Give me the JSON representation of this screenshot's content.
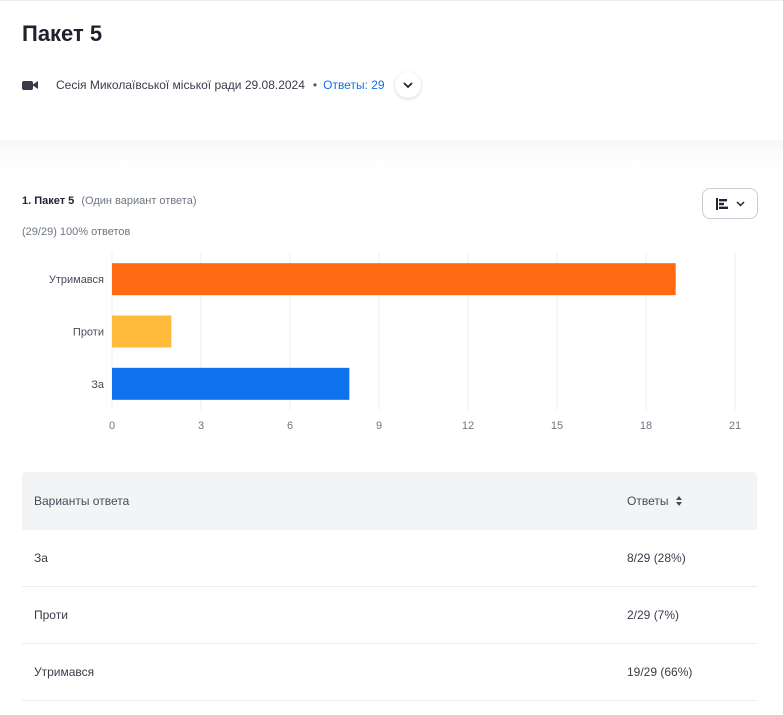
{
  "page": {
    "title": "Пакет 5",
    "meeting_name": "Сесія Миколаївської міської ради 29.08.2024",
    "separator": "•",
    "answers_link": "Ответы: 29"
  },
  "question": {
    "number_title": "1. Пакет 5",
    "type": "(Один вариант ответа)",
    "stats": "(29/29) 100% ответов"
  },
  "colors": {
    "accent": "#0e72ed",
    "bar_abstain": "#ff6a13",
    "bar_against": "#ffbb3b",
    "bar_for": "#0e72ed"
  },
  "chart_data": {
    "type": "bar",
    "orientation": "horizontal",
    "categories": [
      "Утримався",
      "Проти",
      "За"
    ],
    "values": [
      19,
      2,
      8
    ],
    "colors": [
      "#ff6a13",
      "#ffbb3b",
      "#0e72ed"
    ],
    "xlim": [
      0,
      21
    ],
    "xticks": [
      0,
      3,
      6,
      9,
      12,
      15,
      18,
      21
    ],
    "grid": true,
    "legend": "none",
    "title": "",
    "xlabel": "",
    "ylabel": ""
  },
  "table": {
    "headers": [
      "Варианты ответа",
      "Ответы"
    ],
    "rows": [
      {
        "option": "За",
        "answers": "8/29 (28%)"
      },
      {
        "option": "Проти",
        "answers": "2/29 (7%)"
      },
      {
        "option": "Утримався",
        "answers": "19/29 (66%)"
      }
    ]
  },
  "icons": {
    "meeting": "camera-icon",
    "expand": "chevron-down-icon",
    "view": "bar-chart-view-icon",
    "sort": "sort-icon"
  }
}
